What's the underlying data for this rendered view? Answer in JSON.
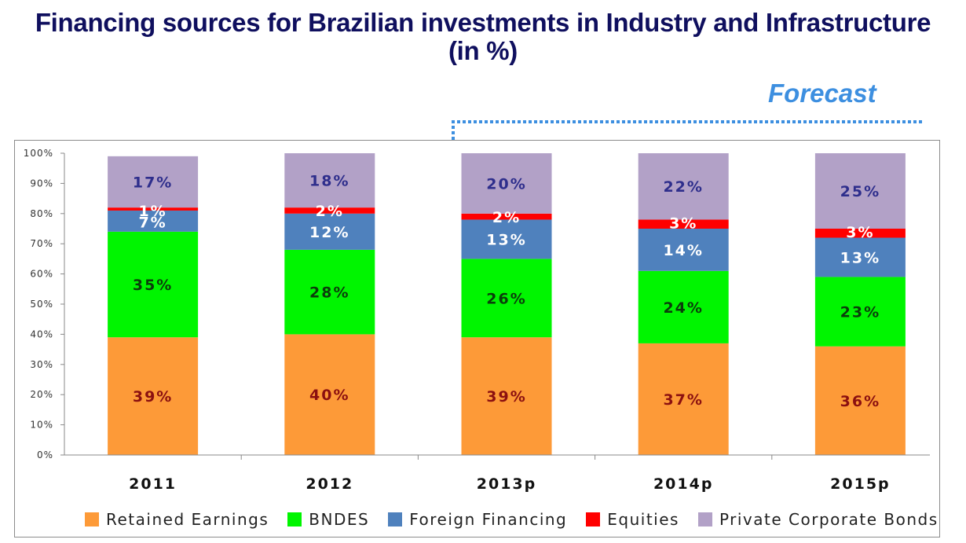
{
  "title_line1": "Financing sources for Brazilian investments in Industry and Infrastructure",
  "title_line2": "(in %)",
  "forecast_label": "Forecast",
  "chart_data": {
    "type": "bar",
    "stacked": true,
    "title": "Financing sources for Brazilian investments in Industry and Infrastructure (in %)",
    "xlabel": "",
    "ylabel": "",
    "ylim": [
      0,
      100
    ],
    "yticks": [
      "0%",
      "10%",
      "20%",
      "30%",
      "40%",
      "50%",
      "60%",
      "70%",
      "80%",
      "90%",
      "100%"
    ],
    "categories": [
      "2011",
      "2012",
      "2013p",
      "2014p",
      "2015p"
    ],
    "annotation": "Forecast (2013p–2015p)",
    "legend_position": "bottom",
    "grid": false,
    "series": [
      {
        "name": "Retained Earnings",
        "color": "#fd9a38",
        "label_color": "#8b1010",
        "values": [
          39,
          40,
          39,
          37,
          36
        ]
      },
      {
        "name": "BNDES",
        "color": "#00f500",
        "label_color": "#0b3d0b",
        "values": [
          35,
          28,
          26,
          24,
          23
        ]
      },
      {
        "name": "Foreign Financing",
        "color": "#4f81bd",
        "label_color": "#ffffff",
        "values": [
          7,
          12,
          13,
          14,
          13
        ]
      },
      {
        "name": "Equities",
        "color": "#ff0000",
        "label_color": "#ffffff",
        "values": [
          1,
          2,
          2,
          3,
          3
        ]
      },
      {
        "name": "Private Corporate Bonds",
        "color": "#b2a1c7",
        "label_color": "#2e2e8c",
        "values": [
          17,
          18,
          20,
          22,
          25
        ]
      }
    ]
  }
}
